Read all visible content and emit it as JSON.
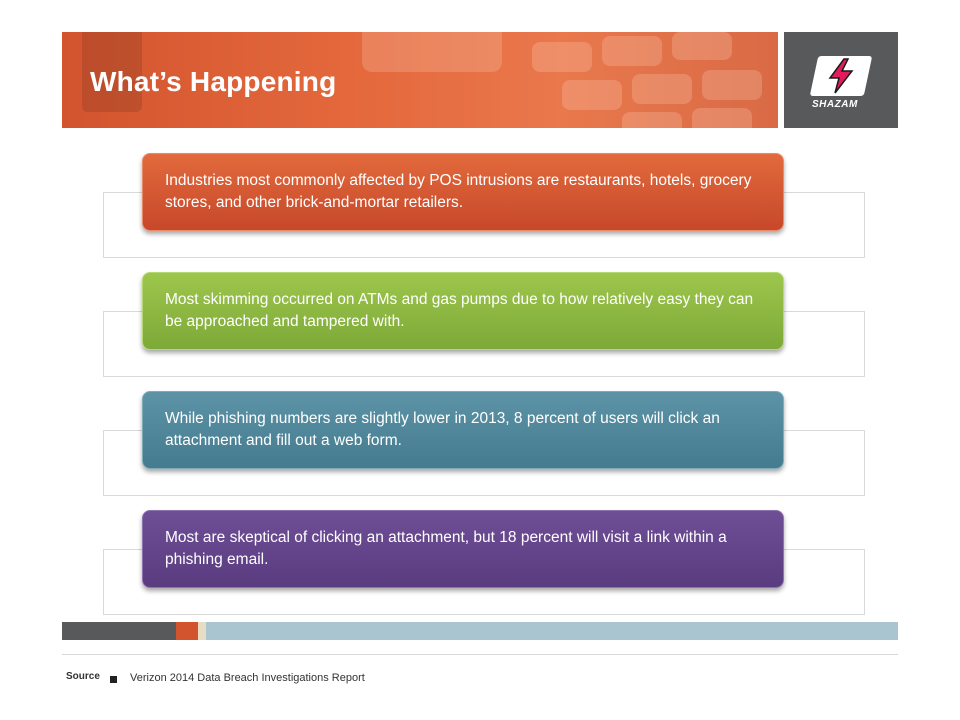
{
  "header": {
    "title": "What’s Happening",
    "accent_color": "#d2542e"
  },
  "logo": {
    "text": "SHAZAM",
    "icon": "lightning-bolt-icon"
  },
  "cards": [
    {
      "text": "Industries most commonly affected by POS intrusions are restaurants, hotels, grocery stores, and other brick-and-mortar retailers.",
      "color": "#d2542e"
    },
    {
      "text": "Most skimming occurred on ATMs and gas pumps due to how relatively easy they can be approached and tampered with.",
      "color": "#8ab842"
    },
    {
      "text": "While phishing numbers are slightly lower in 2013, 8 percent of users will click an attachment and fill out a web form.",
      "color": "#4f8599"
    },
    {
      "text": "Most are skeptical of clicking an attachment, but 18 percent will visit a link within a phishing email.",
      "color": "#634588"
    }
  ],
  "footer": {
    "source_label": "Source",
    "source_text": "Verizon 2014 Data Breach Investigations Report"
  }
}
